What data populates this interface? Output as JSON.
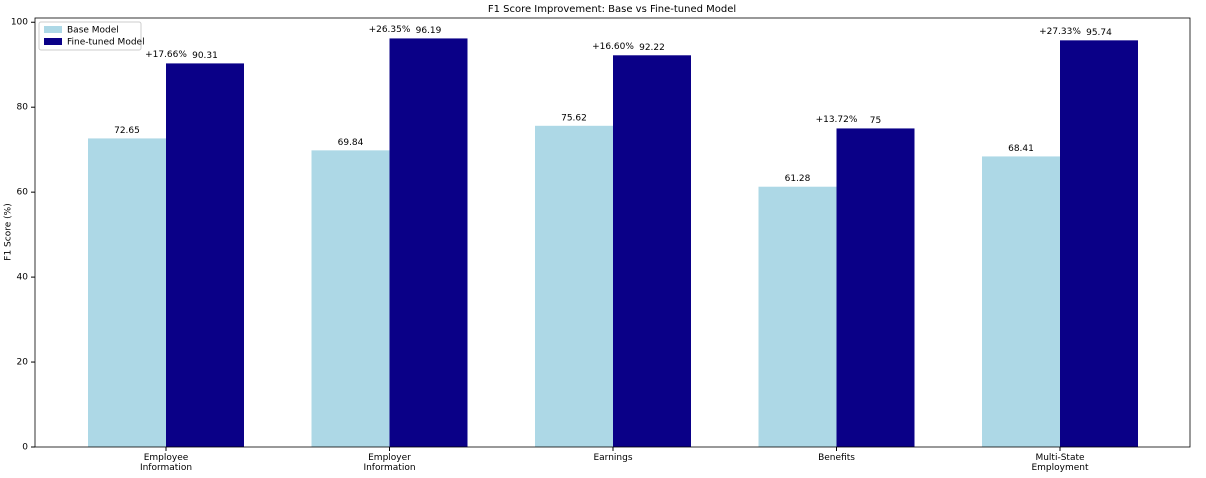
{
  "chart_data": {
    "type": "bar",
    "title": "F1 Score Improvement: Base vs Fine-tuned Model",
    "y_label": "F1 Score (%)",
    "categories": [
      "Employee\nInformation",
      "Employer\nInformation",
      "Earnings",
      "Benefits",
      "Multi-State\nEmployment"
    ],
    "series": [
      {
        "name": "Base Model",
        "color": "#add8e6",
        "values": [
          72.65,
          69.84,
          75.62,
          61.28,
          68.41
        ]
      },
      {
        "name": "Fine-tuned Model",
        "color": "#0a0087",
        "values": [
          90.31,
          96.19,
          92.22,
          75,
          95.74
        ]
      }
    ],
    "annotations": [
      "+17.66%",
      "+26.35%",
      "+16.60%",
      "+13.72%",
      "+27.33%"
    ],
    "ylim": [
      0,
      101
    ],
    "yticks": [
      0,
      20,
      40,
      60,
      80,
      100
    ],
    "legend": "upper-left"
  }
}
